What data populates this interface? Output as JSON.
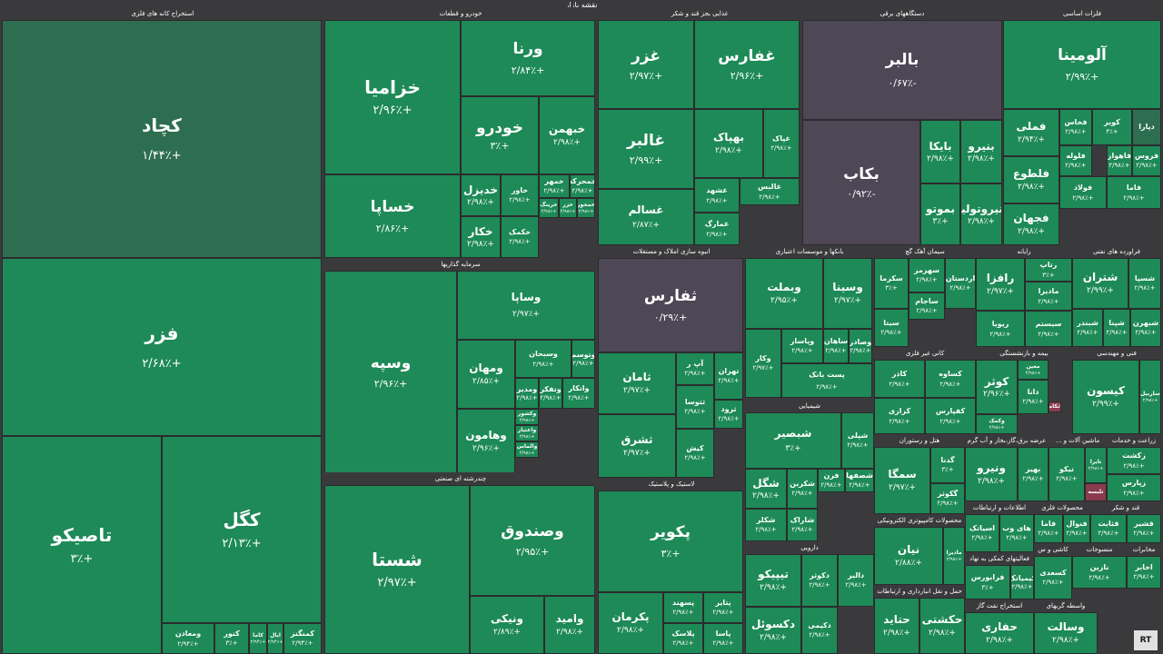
{
  "page_title": "نقشه بازار",
  "colors": {
    "up": "#1e8a57",
    "up_dark": "#2e6e50",
    "down": "#4e4756",
    "strong_down": "#8a3b4d",
    "bg": "#3a3a3c"
  },
  "watermark": "RT",
  "sectors": [
    {
      "name": "استخراج کانه های فلزی",
      "tiles": [
        {
          "n": "کچاد",
          "p": "+۱/۴۴٪",
          "c": "dark"
        },
        {
          "n": "فزر",
          "p": "+۲/۶۸٪"
        },
        {
          "n": "تاصیکو",
          "p": "+۳٪"
        },
        {
          "n": "کگل",
          "p": "+۲/۱۳٪"
        },
        {
          "n": "ومعادن",
          "p": "+۲/۹۴٪"
        },
        {
          "n": "کنور",
          "p": "+۳٪"
        },
        {
          "n": "کاما",
          "p": "+۲/۹۴٪"
        },
        {
          "n": "ایال",
          "p": "+۲/۹۴٪"
        },
        {
          "n": "کمنگنز",
          "p": "+۲/۹۴٪"
        }
      ]
    },
    {
      "name": "خودرو و قطعات",
      "tiles": [
        {
          "n": "خزامیا",
          "p": "+۲/۹۶٪"
        },
        {
          "n": "ورنا",
          "p": "+۲/۸۴٪"
        },
        {
          "n": "خودرو",
          "p": "+۳٪"
        },
        {
          "n": "خبهمن",
          "p": "+۲/۹۸٪"
        },
        {
          "n": "خساپا",
          "p": "+۲/۸۶٪"
        },
        {
          "n": "خدیزل",
          "p": "+۲/۹۸٪"
        },
        {
          "n": "خاور",
          "p": "+۲/۹۸٪"
        },
        {
          "n": "خمهر",
          "p": "+۲/۹۸٪"
        },
        {
          "n": "خمحرکه",
          "p": "+۲/۹۸٪"
        },
        {
          "n": "خکار",
          "p": "+۲/۹۸٪"
        },
        {
          "n": "خکمک",
          "p": "+۲/۹۸٪"
        },
        {
          "n": "خرینگ",
          "p": "+۲/۹۸٪"
        },
        {
          "n": "خزر",
          "p": "+۲/۹۸٪"
        },
        {
          "n": "خمحور",
          "p": "+۲/۹۸٪"
        }
      ]
    },
    {
      "name": "سرمایه گذاریها",
      "tiles": [
        {
          "n": "وسپه",
          "p": "+۲/۹۶٪"
        },
        {
          "n": "وساپا",
          "p": "+۲/۹۷٪"
        },
        {
          "n": "ومهان",
          "p": "+۲/۸۵٪"
        },
        {
          "n": "وسبحان",
          "p": "+۲/۹۸٪"
        },
        {
          "n": "وتوسم",
          "p": "+۲/۹۸٪"
        },
        {
          "n": "وهامون",
          "p": "+۲/۹۶٪"
        },
        {
          "n": "ومدیر",
          "p": "+۲/۹۸٪"
        },
        {
          "n": "وتفکر",
          "p": "+۲/۹۸٪"
        },
        {
          "n": "واتکار",
          "p": "+۲/۹۸٪"
        },
        {
          "n": "وکشور",
          "p": "+۲/۹۸٪"
        },
        {
          "n": "واعتبار",
          "p": "+۲/۹۸٪"
        },
        {
          "n": "والماس",
          "p": "+۲/۹۸٪"
        }
      ]
    },
    {
      "name": "چندرشته ای صنعتی",
      "tiles": [
        {
          "n": "شستا",
          "p": "+۲/۹۷٪"
        },
        {
          "n": "وصندوق",
          "p": "+۲/۹۵٪"
        },
        {
          "n": "ونیکی",
          "p": "+۲/۸۹٪"
        },
        {
          "n": "وامید",
          "p": "+۲/۹۸٪"
        }
      ]
    },
    {
      "name": "غذایی بجز قند و شکر",
      "tiles": [
        {
          "n": "غزر",
          "p": "+۲/۹۷٪"
        },
        {
          "n": "غفارس",
          "p": "+۲/۹۶٪"
        },
        {
          "n": "غالبر",
          "p": "+۲/۹۹٪"
        },
        {
          "n": "بهپاک",
          "p": "+۲/۹۸٪"
        },
        {
          "n": "غپاک",
          "p": "+۲/۹۸٪"
        },
        {
          "n": "غسالم",
          "p": "+۲/۸۷٪"
        },
        {
          "n": "غشهد",
          "p": "+۲/۹۸٪"
        },
        {
          "n": "غمارگ",
          "p": "+۲/۹۸٪"
        },
        {
          "n": "غالبس",
          "p": "+۲/۹۸٪"
        }
      ]
    },
    {
      "name": "دستگاههای برقی",
      "tiles": [
        {
          "n": "بالبر",
          "p": "-۰/۶۷٪",
          "c": "neg"
        },
        {
          "n": "بکاب",
          "p": "-۰/۹۲٪",
          "c": "neg"
        },
        {
          "n": "بایکا",
          "p": "+۲/۹۸٪"
        },
        {
          "n": "بنیرو",
          "p": "+۲/۹۸٪"
        },
        {
          "n": "بموتو",
          "p": "+۳٪"
        },
        {
          "n": "بنیروتولید",
          "p": "+۲/۹۸٪"
        }
      ]
    },
    {
      "name": "فلزات اساسی",
      "tiles": [
        {
          "n": "آلومینا",
          "p": "+۲/۹۹٪"
        },
        {
          "n": "فملی",
          "p": "+۲/۹۴٪"
        },
        {
          "n": "فخاس",
          "p": "+۲/۹۸٪"
        },
        {
          "n": "کویر",
          "p": "+۳٪"
        },
        {
          "n": "دپارا",
          "p": "",
          "c": "dark"
        },
        {
          "n": "فلوله",
          "p": "+۲/۹۸٪"
        },
        {
          "n": "فلطوع",
          "p": "+۲/۹۸٪"
        },
        {
          "n": "فجهان",
          "p": "+۲/۹۸٪"
        },
        {
          "n": "فولاد",
          "p": "+۲/۹۸٪"
        },
        {
          "n": "فاهواز",
          "p": "+۲/۹۸٪"
        },
        {
          "n": "فروس",
          "p": "+۲/۹۸٪"
        },
        {
          "n": "فاما",
          "p": "+۲/۹۸٪"
        }
      ]
    },
    {
      "name": "انبوه سازی املاک و مستغلات",
      "tiles": [
        {
          "n": "ثفارس",
          "p": "+۰/۲۹٪",
          "c": "neg"
        },
        {
          "n": "ثامان",
          "p": "+۲/۹۷٪"
        },
        {
          "n": "آپ ر",
          "p": "+۲/۹۸٪"
        },
        {
          "n": "تهران",
          "p": "+۲/۹۸٪"
        },
        {
          "n": "ثشرق",
          "p": "+۲/۹۷٪"
        },
        {
          "n": "ثتوسا",
          "p": "+۲/۹۸٪"
        },
        {
          "n": "ثرود",
          "p": "+۲/۹۸٪"
        },
        {
          "n": "کیش",
          "p": "+۲/۹۸٪"
        }
      ]
    },
    {
      "name": "بانکها و موسسات اعتباری",
      "tiles": [
        {
          "n": "وبملت",
          "p": "+۲/۹۵٪"
        },
        {
          "n": "وسینا",
          "p": "+۲/۹۷٪"
        },
        {
          "n": "وکار",
          "p": "+۲/۹۷٪"
        },
        {
          "n": "وپاسار",
          "p": "+۲/۹۸٪"
        },
        {
          "n": "ساهان",
          "p": "+۲/۹۸٪"
        },
        {
          "n": "وصادر",
          "p": "+۲/۹۸٪"
        },
        {
          "n": "پست بانک",
          "p": "+۲/۹۸٪"
        }
      ]
    },
    {
      "name": "سیمان آهک گچ",
      "tiles": [
        {
          "n": "سکرما",
          "p": "+۳٪"
        },
        {
          "n": "سهرمز",
          "p": "+۲/۹۸٪"
        },
        {
          "n": "اردستان",
          "p": "+۲/۹۸٪"
        },
        {
          "n": "سیتا",
          "p": "+۲/۹۸٪"
        },
        {
          "n": "ساجام",
          "p": "+۲/۹۸٪"
        }
      ]
    },
    {
      "name": "رایانه",
      "tiles": [
        {
          "n": "رافزا",
          "p": "+۲/۹۷٪"
        },
        {
          "n": "رتاپ",
          "p": "+۳٪"
        },
        {
          "n": "مادیرا",
          "p": "+۲/۹۸٪"
        },
        {
          "n": "ریویا",
          "p": "+۲/۹۸٪"
        },
        {
          "n": "سیستم",
          "p": "+۲/۹۸٪"
        }
      ]
    },
    {
      "name": "فراورده های نفتی",
      "tiles": [
        {
          "n": "شتران",
          "p": "+۲/۹۹٪"
        },
        {
          "n": "شسپا",
          "p": "+۲/۹۸٪"
        },
        {
          "n": "شبندر",
          "p": "+۲/۹۸٪"
        },
        {
          "n": "شپنا",
          "p": "+۲/۹۸٪"
        },
        {
          "n": "شبهرن",
          "p": "+۲/۹۸٪"
        }
      ]
    },
    {
      "name": "شیمیایی",
      "tiles": [
        {
          "n": "شبصیر",
          "p": "+۳٪"
        },
        {
          "n": "شپلی",
          "p": "+۲/۹۸٪"
        },
        {
          "n": "شگل",
          "p": "+۲/۹۸٪"
        },
        {
          "n": "شکربن",
          "p": "+۲/۹۸٪"
        },
        {
          "n": "فرن",
          "p": "+۲/۹۸٪"
        },
        {
          "n": "شصفها",
          "p": "+۲/۹۸٪"
        },
        {
          "n": "شاراک",
          "p": "+۲/۹۸٪"
        },
        {
          "n": "شکلر",
          "p": "+۲/۹۸٪"
        }
      ]
    },
    {
      "name": "لاستیک و پلاستیک",
      "tiles": [
        {
          "n": "پکویر",
          "p": "+۳٪"
        },
        {
          "n": "پکرمان",
          "p": "+۲/۹۸٪"
        },
        {
          "n": "پسهند",
          "p": "+۲/۹۸٪"
        },
        {
          "n": "پلاسک",
          "p": "+۲/۹۸٪"
        },
        {
          "n": "پتایر",
          "p": "+۲/۹۸٪"
        },
        {
          "n": "پاسا",
          "p": "+۲/۹۸٪"
        }
      ]
    },
    {
      "name": "دارویی",
      "tiles": [
        {
          "n": "تیپیکو",
          "p": "+۲/۹۸٪"
        },
        {
          "n": "دکوثر",
          "p": "+۲/۹۸٪"
        },
        {
          "n": "دالبر",
          "p": "+۲/۹۸٪"
        },
        {
          "n": "دکیمی",
          "p": "+۲/۹۸٪"
        },
        {
          "n": "دکسوئل",
          "p": "+۲/۹۸٪"
        }
      ]
    },
    {
      "name": "کانی غیر فلزی",
      "tiles": [
        {
          "n": "کاذر",
          "p": "+۲/۹۸٪"
        },
        {
          "n": "کساوه",
          "p": "+۲/۹۸٪"
        },
        {
          "n": "کفپارس",
          "p": "+۲/۹۸٪"
        },
        {
          "n": "کرازی",
          "p": "+۲/۹۸٪"
        }
      ]
    },
    {
      "name": "بیمه و بازنشستگی",
      "tiles": [
        {
          "n": "کوثر",
          "p": "+۲/۹۶٪"
        },
        {
          "n": "معین",
          "p": "+۲/۹۸٪"
        },
        {
          "n": "دانا",
          "p": "+۲/۹۸٪"
        },
        {
          "n": "وکمک",
          "p": "+۲/۹۸٪"
        },
        {
          "n": "اتکام",
          "p": "",
          "c": "red"
        }
      ]
    },
    {
      "name": "فنی و مهندسی",
      "tiles": [
        {
          "n": "کیسون",
          "p": "+۲/۹۹٪"
        },
        {
          "n": "ساربیل",
          "p": "+۲/۹۸٪"
        }
      ]
    },
    {
      "name": "هتل و رستوران",
      "tiles": [
        {
          "n": "سمگا",
          "p": "+۲/۹۷٪"
        },
        {
          "n": "گدنا",
          "p": "+۳٪"
        },
        {
          "n": "گکوثر",
          "p": "+۲/۹۸٪"
        }
      ]
    },
    {
      "name": "عرضه برق،گاز،بخار و آب گرم",
      "tiles": [
        {
          "n": "ونیرو",
          "p": "+۲/۹۸٪"
        },
        {
          "n": "بهیر",
          "p": "+۲/۹۸٪"
        }
      ]
    },
    {
      "name": "ماشین آلات و ...",
      "tiles": [
        {
          "n": "تیکو",
          "p": "+۲/۹۸٪"
        },
        {
          "n": "تایرا",
          "p": "+۲/۹۸٪"
        },
        {
          "n": "تلیسه",
          "p": "",
          "c": "red"
        }
      ]
    },
    {
      "name": "زراعت و خدمات",
      "tiles": [
        {
          "n": "زکشت",
          "p": "+۲/۹۸٪"
        },
        {
          "n": "زپارس",
          "p": "+۲/۹۸٪"
        }
      ]
    },
    {
      "name": "محصولات کامپیوتری الکترونیکی",
      "tiles": [
        {
          "n": "نیان",
          "p": "+۲/۸۸٪"
        },
        {
          "n": "مادیرا",
          "p": "+۲/۹۸٪"
        }
      ]
    },
    {
      "name": "اطلاعات و ارتباطات",
      "tiles": [
        {
          "n": "اسیاتک",
          "p": "+۲/۹۸٪"
        },
        {
          "n": "های وب",
          "p": "+۲/۹۸٪"
        }
      ]
    },
    {
      "name": "محصولات فلزی",
      "tiles": [
        {
          "n": "فاما",
          "p": "+۲/۹۸٪"
        },
        {
          "n": "فنوال",
          "p": "+۲/۹۸٪"
        }
      ]
    },
    {
      "name": "قند و شکر",
      "tiles": [
        {
          "n": "قثابت",
          "p": "+۲/۹۸٪"
        },
        {
          "n": "قشیر",
          "p": "+۲/۹۸٪"
        }
      ]
    },
    {
      "name": "فعالیتهای کمکی به نهاد",
      "tiles": [
        {
          "n": "فرابورس",
          "p": "+۳٪"
        },
        {
          "n": "کیمیاتک",
          "p": "+۲/۹۸٪"
        }
      ]
    },
    {
      "name": "حمل و نقل انبارداری و ارتباطات",
      "tiles": [
        {
          "n": "حتاید",
          "p": "+۲/۹۸٪"
        },
        {
          "n": "حکشتی",
          "p": "+۲/۹۸٪"
        }
      ]
    },
    {
      "name": "استخراج نفت گاز",
      "tiles": [
        {
          "n": "حفاری",
          "p": "+۲/۹۸٪"
        }
      ]
    },
    {
      "name": "واسطه گریهای",
      "tiles": [
        {
          "n": "وسالت",
          "p": "+۲/۹۸٪"
        }
      ]
    },
    {
      "name": "منسوجات",
      "tiles": [
        {
          "n": "نازین",
          "p": "+۲/۹۸٪"
        }
      ]
    },
    {
      "name": "کاشی و س",
      "tiles": [
        {
          "n": "کسعدی",
          "p": "+۲/۹۸٪"
        }
      ]
    },
    {
      "name": "مخابرات",
      "tiles": [
        {
          "n": "اخابر",
          "p": "+۲/۹۸٪"
        }
      ]
    }
  ]
}
